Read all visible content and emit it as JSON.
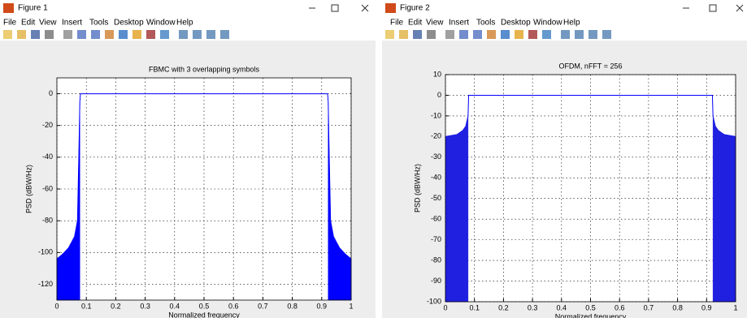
{
  "windows": [
    {
      "title": "Figure 1",
      "menu": [
        "File",
        "Edit",
        "View",
        "Insert",
        "Tools",
        "Desktop",
        "Window",
        "Help"
      ]
    },
    {
      "title": "Figure 2",
      "menu": [
        "File",
        "Edit",
        "View",
        "Insert",
        "Tools",
        "Desktop",
        "Window",
        "Help"
      ]
    }
  ],
  "chart_data": [
    {
      "type": "line",
      "title": "FBMC with 3 overlapping symbols",
      "x_label": "Normalized frequency",
      "y_label": "PSD (dBW/Hz)",
      "xlim": [
        0,
        1
      ],
      "ylim": [
        -130,
        10
      ],
      "xticks": [
        0,
        0.1,
        0.2,
        0.3,
        0.4,
        0.5,
        0.6,
        0.7,
        0.8,
        0.9,
        1
      ],
      "yticks": [
        0,
        -20,
        -40,
        -60,
        -80,
        -100,
        -120
      ],
      "grid": true,
      "series": [
        {
          "color": "#0000ff",
          "fill": false,
          "x": [
            0,
            0.02,
            0.04,
            0.06,
            0.07,
            0.075,
            0.078,
            0.08,
            0.3,
            0.5,
            0.7,
            0.92,
            0.922,
            0.925,
            0.93,
            0.94,
            0.96,
            0.98,
            1
          ],
          "values": [
            -104,
            -101,
            -97,
            -90,
            -80,
            -35,
            -5,
            0,
            0,
            0,
            0,
            0,
            -5,
            -35,
            -80,
            -90,
            -97,
            -101,
            -104
          ]
        },
        {
          "color": "#0000ff",
          "fill": true,
          "x": [
            0,
            0.02,
            0.04,
            0.06,
            0.07,
            0.075,
            0.078,
            0.5,
            0.922,
            0.925,
            0.93,
            0.94,
            0.96,
            0.98,
            1
          ],
          "values": [
            -104,
            -101,
            -97,
            -90,
            -80,
            -35,
            -5,
            null,
            -5,
            -35,
            -80,
            -90,
            -97,
            -101,
            -104
          ]
        }
      ]
    },
    {
      "type": "line",
      "title": "OFDM, nFFT = 256",
      "x_label": "Normalized frequency",
      "y_label": "PSD (dBW/Hz)",
      "xlim": [
        0,
        1
      ],
      "ylim": [
        -100,
        10
      ],
      "xticks": [
        0,
        0.1,
        0.2,
        0.3,
        0.4,
        0.5,
        0.6,
        0.7,
        0.8,
        0.9,
        1
      ],
      "yticks": [
        10,
        0,
        -10,
        -20,
        -30,
        -40,
        -50,
        -60,
        -70,
        -80,
        -90,
        -100
      ],
      "grid": true,
      "series": [
        {
          "color": "#0000ff",
          "fill": false,
          "x": [
            0,
            0.02,
            0.04,
            0.06,
            0.07,
            0.078,
            0.08,
            0.5,
            0.92,
            0.922,
            0.93,
            0.94,
            0.96,
            0.98,
            1
          ],
          "values": [
            -20,
            -19.5,
            -19,
            -17,
            -15,
            -10,
            0,
            0,
            0,
            -10,
            -15,
            -17,
            -19,
            -19.5,
            -20
          ]
        },
        {
          "color": "#2020e0",
          "fill": true,
          "x": [
            0,
            0.02,
            0.04,
            0.06,
            0.07,
            0.078,
            0.5,
            0.922,
            0.93,
            0.94,
            0.96,
            0.98,
            1
          ],
          "values": [
            -20,
            -19.5,
            -19,
            -17,
            -15,
            -10,
            null,
            -10,
            -15,
            -17,
            -19,
            -19.5,
            -20
          ]
        }
      ]
    }
  ]
}
